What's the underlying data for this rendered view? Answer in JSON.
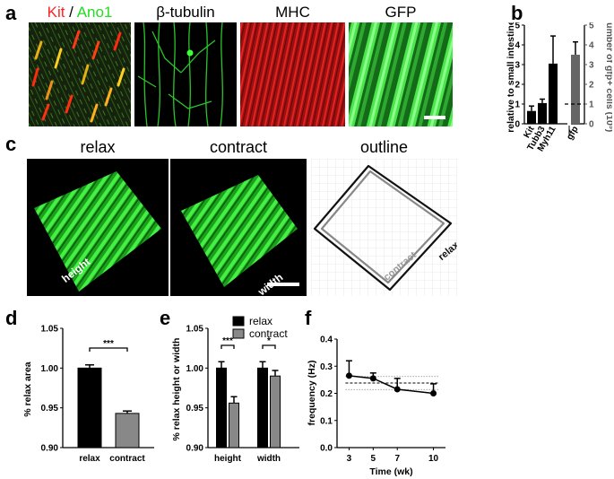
{
  "labels": {
    "a": "a",
    "b": "b",
    "c": "c",
    "d": "d",
    "e": "e",
    "f": "f"
  },
  "panel_a": {
    "titles": [
      {
        "parts": [
          {
            "text": "Kit",
            "color": "#ff2222"
          },
          {
            "text": " / ",
            "color": "#000000"
          },
          {
            "text": "Ano1",
            "color": "#22dd22"
          }
        ]
      },
      {
        "parts": [
          {
            "text": "β-tubulin",
            "color": "#000000"
          }
        ]
      },
      {
        "parts": [
          {
            "text": "MHC",
            "color": "#000000"
          }
        ]
      },
      {
        "parts": [
          {
            "text": "GFP",
            "color": "#000000"
          }
        ]
      }
    ]
  },
  "panel_c": {
    "titles": [
      "relax",
      "contract",
      "outline"
    ],
    "image_labels": {
      "height": "height",
      "width": "width",
      "contract": "contract",
      "relax": "relax"
    }
  },
  "chart_data": [
    {
      "id": "b",
      "type": "bar",
      "categories": [
        "Kit",
        "Tubb3",
        "Myh11",
        "gfp"
      ],
      "values": [
        0.65,
        1.05,
        3.05,
        3.5
      ],
      "errors": [
        0.25,
        0.2,
        1.4,
        0.65
      ],
      "colors": [
        "#000000",
        "#000000",
        "#000000",
        "#666666"
      ],
      "ylabel": "relative to small intestine*",
      "y2label": "number of gfp+ cells (10",
      "y2label_sup": "5",
      "y2label_end": ")",
      "ylim": [
        0,
        5
      ],
      "yticks": [
        "0",
        "1",
        "2",
        "3",
        "4",
        "5"
      ],
      "y2ticks": [
        "0",
        "1",
        "2",
        "3",
        "4",
        "5"
      ],
      "reference_line": 1
    },
    {
      "id": "d",
      "type": "bar",
      "categories": [
        "relax",
        "contract"
      ],
      "values": [
        1.0,
        0.943
      ],
      "errors": [
        0.004,
        0.003
      ],
      "colors": [
        "#000000",
        "#888888"
      ],
      "ylabel": "% relax area",
      "ylim": [
        0.9,
        1.05
      ],
      "yticks": [
        "0.90",
        "0.95",
        "1.00",
        "1.05"
      ],
      "significance": "***"
    },
    {
      "id": "e",
      "type": "bar",
      "categories": [
        "height",
        "width"
      ],
      "series": [
        {
          "name": "relax",
          "values": [
            1.0,
            1.0
          ],
          "errors": [
            0.008,
            0.008
          ],
          "color": "#000000"
        },
        {
          "name": "contract",
          "values": [
            0.956,
            0.99
          ],
          "errors": [
            0.008,
            0.007
          ],
          "color": "#888888"
        }
      ],
      "ylabel": "% relax height or width",
      "ylim": [
        0.9,
        1.05
      ],
      "yticks": [
        "0.90",
        "0.95",
        "1.00",
        "1.05"
      ],
      "significance": [
        "***",
        "*"
      ],
      "legend": "top-right"
    },
    {
      "id": "f",
      "type": "line",
      "x": [
        3,
        5,
        7,
        10
      ],
      "xticks": [
        "3",
        "5",
        "7",
        "10"
      ],
      "values": [
        0.265,
        0.255,
        0.215,
        0.2
      ],
      "errors": [
        0.055,
        0.02,
        0.04,
        0.035
      ],
      "xlabel": "Time (wk)",
      "ylabel": "frequency (Hz)",
      "ylim": [
        0,
        0.4
      ],
      "yticks": [
        "0.0",
        "0.1",
        "0.2",
        "0.3",
        "0.4"
      ],
      "mean_line": 0.238,
      "sd_lines": [
        0.262,
        0.214
      ]
    }
  ]
}
